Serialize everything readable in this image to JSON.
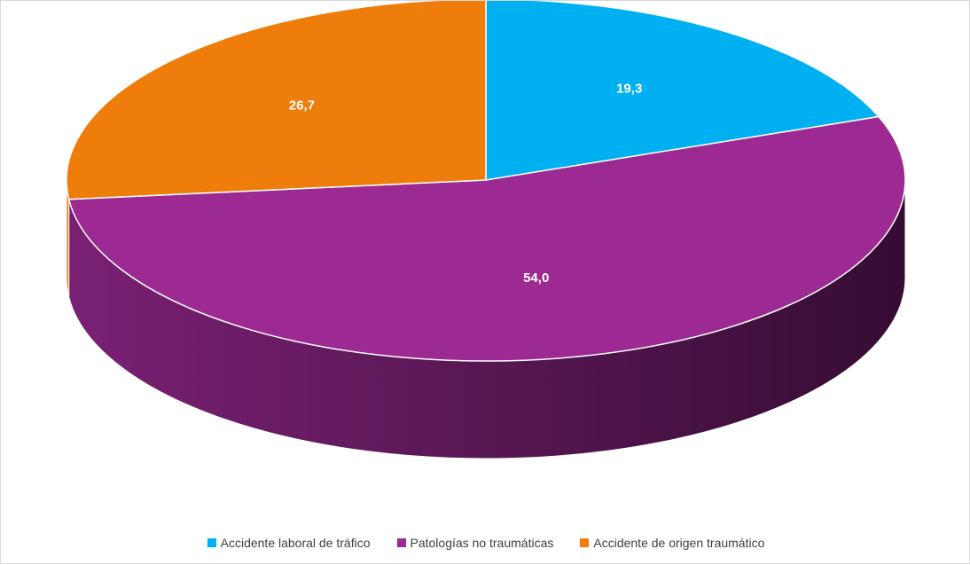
{
  "chart_data": {
    "type": "pie",
    "style": "3d",
    "categories": [
      "Accidente laboral de tráfico",
      "Patologías no traumáticas",
      "Accidente de origen traumático"
    ],
    "values": [
      19.3,
      54.0,
      26.7
    ],
    "labels": [
      "19,3",
      "54,0",
      "26,7"
    ],
    "colors": [
      "#00b0f0",
      "#9c2a92",
      "#ef7d0c"
    ],
    "legend_position": "bottom"
  }
}
